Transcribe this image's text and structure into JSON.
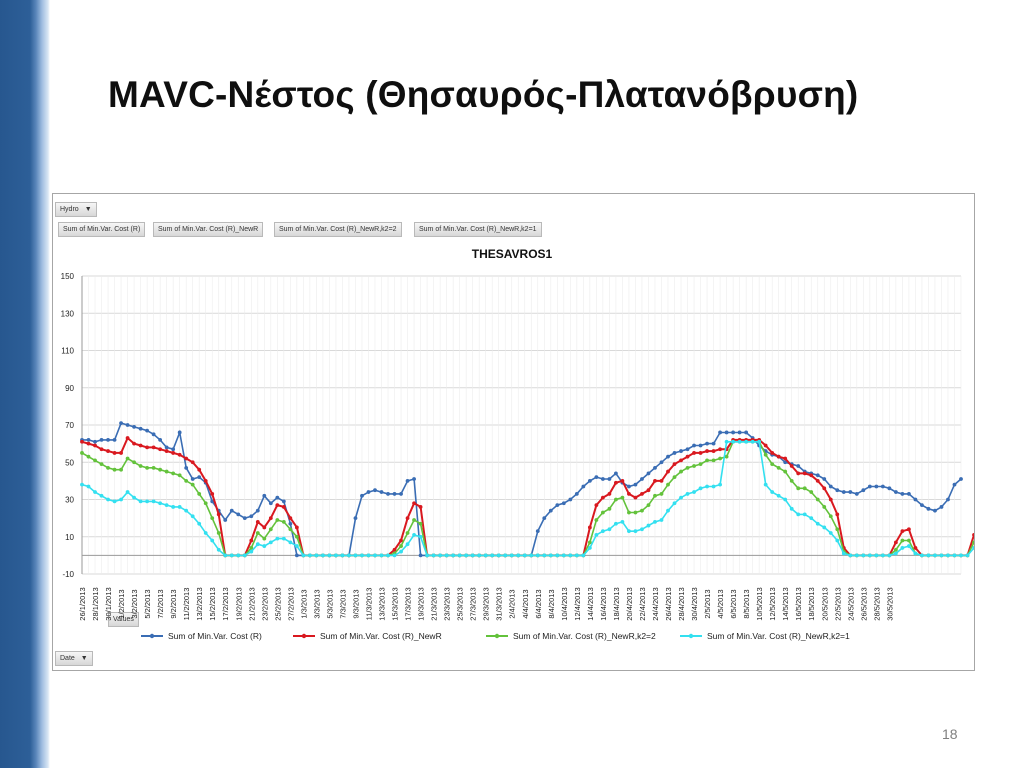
{
  "slide": {
    "title": "MAVC-Νέστος (Θησαυρός-Πλατανόβρυση)",
    "page_number": "18"
  },
  "pivot": {
    "filter_button": "Hydro",
    "value_buttons": [
      "Sum of Min.Var. Cost (R)",
      "Sum of Min.Var. Cost (R)_NewR",
      "Sum of Min.Var. Cost (R)_NewR,k2=2",
      "Sum of Min.Var. Cost (R)_NewR,k2=1"
    ],
    "values_button": "Values",
    "axis_button": "Date"
  },
  "chart_data": {
    "type": "line",
    "title": "THESAVROS1",
    "xlabel": "",
    "ylabel": "",
    "ylim": [
      -10,
      150
    ],
    "yticks": [
      -10,
      10,
      30,
      50,
      70,
      90,
      110,
      130,
      150
    ],
    "grid": true,
    "legend_position": "bottom",
    "x_tick_labels": [
      "26/1/2013",
      "28/1/2013",
      "30/1/2013",
      "1/2/2013",
      "3/2/2013",
      "5/2/2013",
      "7/2/2013",
      "9/2/2013",
      "11/2/2013",
      "13/2/2013",
      "15/2/2013",
      "17/2/2013",
      "19/2/2013",
      "21/2/2013",
      "23/2/2013",
      "25/2/2013",
      "27/2/2013",
      "1/3/2013",
      "3/3/2013",
      "5/3/2013",
      "7/3/2013",
      "9/3/2013",
      "11/3/2013",
      "13/3/2013",
      "15/3/2013",
      "17/3/2013",
      "19/3/2013",
      "21/3/2013",
      "23/3/2013",
      "25/3/2013",
      "27/3/2013",
      "29/3/2013",
      "31/3/2013",
      "2/4/2013",
      "4/4/2013",
      "6/4/2013",
      "8/4/2013",
      "10/4/2013",
      "12/4/2013",
      "14/4/2013",
      "16/4/2013",
      "18/4/2013",
      "20/4/2013",
      "22/4/2013",
      "24/4/2013",
      "26/4/2013",
      "28/4/2013",
      "30/4/2013",
      "2/5/2013",
      "4/5/2013",
      "6/5/2013",
      "8/5/2013",
      "10/5/2013",
      "12/5/2013",
      "14/5/2013",
      "16/5/2013",
      "18/5/2013",
      "20/5/2013",
      "22/5/2013",
      "24/5/2013",
      "26/5/2013",
      "28/5/2013",
      "30/5/2013"
    ],
    "series": [
      {
        "name": "Sum of Min.Var. Cost (R)",
        "color": "#3a6db4",
        "values": [
          62,
          62,
          61,
          62,
          62,
          62,
          71,
          70,
          69,
          68,
          67,
          65,
          62,
          58,
          57,
          66,
          47,
          41,
          42,
          39,
          29,
          24,
          19,
          24,
          22,
          20,
          21,
          24,
          32,
          28,
          31,
          29,
          17,
          0,
          0,
          0,
          0,
          0,
          0,
          0,
          0,
          0,
          20,
          32,
          34,
          35,
          34,
          33,
          33,
          33,
          40,
          41,
          0,
          0,
          0,
          0,
          0,
          0,
          0,
          0,
          0,
          0,
          0,
          0,
          0,
          0,
          0,
          0,
          0,
          0,
          13,
          20,
          24,
          27,
          28,
          30,
          33,
          37,
          40,
          42,
          41,
          41,
          44,
          39,
          37,
          38,
          41,
          44,
          47,
          50,
          53,
          55,
          56,
          57,
          59,
          59,
          60,
          60,
          66,
          66,
          66,
          66,
          66,
          63,
          59,
          56,
          54,
          53,
          50,
          49,
          48,
          45,
          44,
          43,
          41,
          37,
          35,
          34,
          34,
          33,
          35,
          37,
          37,
          37,
          36,
          34,
          33,
          33,
          30,
          27,
          25,
          24,
          26,
          30,
          38,
          41
        ]
      },
      {
        "name": "Sum of Min.Var. Cost (R)_NewR",
        "color": "#d9181f",
        "values": [
          61,
          60,
          59,
          57,
          56,
          55,
          55,
          63,
          60,
          59,
          58,
          58,
          57,
          56,
          55,
          54,
          52,
          50,
          46,
          40,
          33,
          22,
          0,
          0,
          0,
          0,
          8,
          18,
          15,
          20,
          27,
          26,
          20,
          15,
          0,
          0,
          0,
          0,
          0,
          0,
          0,
          0,
          0,
          0,
          0,
          0,
          0,
          0,
          3,
          8,
          20,
          28,
          26,
          0,
          0,
          0,
          0,
          0,
          0,
          0,
          0,
          0,
          0,
          0,
          0,
          0,
          0,
          0,
          0,
          0,
          0,
          0,
          0,
          0,
          0,
          0,
          0,
          0,
          15,
          27,
          31,
          33,
          39,
          40,
          33,
          31,
          33,
          35,
          40,
          40,
          45,
          49,
          51,
          53,
          55,
          55,
          56,
          56,
          57,
          57,
          62,
          62,
          62,
          62,
          62,
          59,
          55,
          53,
          52,
          48,
          44,
          44,
          43,
          40,
          36,
          30,
          22,
          4,
          0,
          0,
          0,
          0,
          0,
          0,
          0,
          7,
          13,
          14,
          4,
          0,
          0,
          0,
          0,
          0,
          0,
          0,
          0,
          11
        ]
      },
      {
        "name": "Sum of Min.Var. Cost (R)_NewR,k2=2",
        "color": "#63c23b",
        "values": [
          55,
          53,
          51,
          49,
          47,
          46,
          46,
          52,
          50,
          48,
          47,
          47,
          46,
          45,
          44,
          43,
          40,
          38,
          33,
          28,
          20,
          12,
          0,
          0,
          0,
          0,
          4,
          12,
          9,
          14,
          19,
          18,
          14,
          10,
          0,
          0,
          0,
          0,
          0,
          0,
          0,
          0,
          0,
          0,
          0,
          0,
          0,
          0,
          1,
          5,
          12,
          19,
          17,
          0,
          0,
          0,
          0,
          0,
          0,
          0,
          0,
          0,
          0,
          0,
          0,
          0,
          0,
          0,
          0,
          0,
          0,
          0,
          0,
          0,
          0,
          0,
          0,
          0,
          7,
          19,
          23,
          25,
          30,
          31,
          23,
          23,
          24,
          27,
          32,
          33,
          38,
          42,
          45,
          47,
          48,
          49,
          51,
          51,
          52,
          53,
          61,
          61,
          61,
          61,
          61,
          54,
          49,
          47,
          45,
          40,
          36,
          36,
          34,
          30,
          26,
          21,
          14,
          2,
          0,
          0,
          0,
          0,
          0,
          0,
          0,
          3,
          8,
          8,
          1,
          0,
          0,
          0,
          0,
          0,
          0,
          0,
          0,
          7
        ]
      },
      {
        "name": "Sum of Min.Var. Cost (R)_NewR,k2=1",
        "color": "#33e0f0",
        "values": [
          38,
          37,
          34,
          32,
          30,
          29,
          30,
          34,
          31,
          29,
          29,
          29,
          28,
          27,
          26,
          26,
          24,
          21,
          17,
          12,
          8,
          3,
          0,
          0,
          0,
          0,
          2,
          6,
          5,
          7,
          9,
          9,
          7,
          5,
          0,
          0,
          0,
          0,
          0,
          0,
          0,
          0,
          0,
          0,
          0,
          0,
          0,
          0,
          0,
          2,
          6,
          11,
          10,
          0,
          0,
          0,
          0,
          0,
          0,
          0,
          0,
          0,
          0,
          0,
          0,
          0,
          0,
          0,
          0,
          0,
          0,
          0,
          0,
          0,
          0,
          0,
          0,
          0,
          4,
          11,
          13,
          14,
          17,
          18,
          13,
          13,
          14,
          16,
          18,
          19,
          24,
          28,
          31,
          33,
          34,
          36,
          37,
          37,
          38,
          61,
          61,
          61,
          61,
          61,
          61,
          38,
          34,
          32,
          30,
          25,
          22,
          22,
          20,
          17,
          15,
          12,
          8,
          1,
          0,
          0,
          0,
          0,
          0,
          0,
          0,
          1,
          4,
          5,
          1,
          0,
          0,
          0,
          0,
          0,
          0,
          0,
          0,
          4
        ]
      }
    ]
  }
}
